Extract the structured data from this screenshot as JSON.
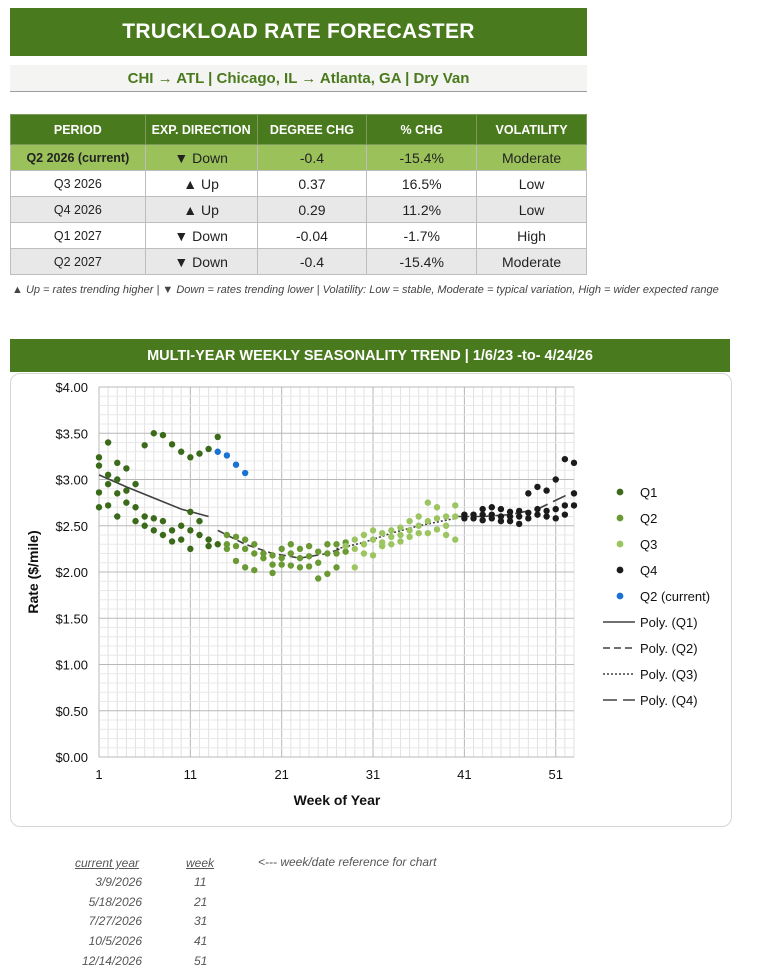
{
  "header": {
    "title": "TRUCKLOAD RATE FORECASTER"
  },
  "lane": {
    "text": "CHI → ATL  |  Chicago, IL → Atlanta, GA  |  Dry Van"
  },
  "forecast_table": {
    "columns": [
      "PERIOD",
      "EXP. DIRECTION",
      "DEGREE CHG",
      "% CHG",
      "VOLATILITY"
    ],
    "rows": [
      {
        "period": "Q2 2026 (current)",
        "direction": "▼ Down",
        "degree": "-0.4",
        "pct": "-15.4%",
        "volatility": "Moderate"
      },
      {
        "period": "Q3 2026",
        "direction": "▲ Up",
        "degree": "0.37",
        "pct": "16.5%",
        "volatility": "Low"
      },
      {
        "period": "Q4 2026",
        "direction": "▲ Up",
        "degree": "0.29",
        "pct": "11.2%",
        "volatility": "Low"
      },
      {
        "period": "Q1 2027",
        "direction": "▼ Down",
        "degree": "-0.04",
        "pct": "-1.7%",
        "volatility": "High"
      },
      {
        "period": "Q2 2027",
        "direction": "▼ Down",
        "degree": "-0.4",
        "pct": "-15.4%",
        "volatility": "Moderate"
      }
    ]
  },
  "legend_note": "▲ Up = rates trending higher  |  ▼ Down = rates trending lower  |  Volatility: Low = stable, Moderate = typical variation, High = wider expected range",
  "chart_header": "MULTI-YEAR WEEKLY SEASONALITY TREND  |  1/6/23 -to- 4/24/26",
  "chart_data": {
    "type": "scatter",
    "xlabel": "Week of Year",
    "ylabel": "Rate ($/mile)",
    "xlim": [
      1,
      52
    ],
    "ylim": [
      0,
      4
    ],
    "xticks": [
      1,
      11,
      21,
      31,
      41,
      51
    ],
    "xtick_labels": [
      "1",
      "11",
      "21",
      "31",
      "41",
      "51"
    ],
    "yticks": [
      0,
      0.5,
      1,
      1.5,
      2,
      2.5,
      3,
      3.5,
      4
    ],
    "ytick_labels": [
      "$0.00",
      "$0.50",
      "$1.00",
      "$1.50",
      "$2.00",
      "$2.50",
      "$3.00",
      "$3.50",
      "$4.00"
    ],
    "grid": true,
    "legend_position": "right",
    "series": [
      {
        "name": "Q1",
        "color": "#3b6b1a",
        "points": [
          [
            1,
            3.24
          ],
          [
            1,
            3.15
          ],
          [
            1,
            2.86
          ],
          [
            1,
            2.7
          ],
          [
            2,
            3.4
          ],
          [
            2,
            3.05
          ],
          [
            2,
            2.95
          ],
          [
            2,
            2.72
          ],
          [
            3,
            3.18
          ],
          [
            3,
            3.0
          ],
          [
            3,
            2.85
          ],
          [
            3,
            2.6
          ],
          [
            4,
            3.12
          ],
          [
            4,
            2.88
          ],
          [
            4,
            2.75
          ],
          [
            5,
            2.95
          ],
          [
            5,
            2.7
          ],
          [
            5,
            2.55
          ],
          [
            6,
            3.37
          ],
          [
            6,
            2.6
          ],
          [
            6,
            2.5
          ],
          [
            7,
            3.5
          ],
          [
            7,
            2.58
          ],
          [
            7,
            2.45
          ],
          [
            8,
            3.48
          ],
          [
            8,
            2.55
          ],
          [
            8,
            2.4
          ],
          [
            9,
            3.38
          ],
          [
            9,
            2.45
          ],
          [
            9,
            2.33
          ],
          [
            10,
            3.3
          ],
          [
            10,
            2.5
          ],
          [
            10,
            2.35
          ],
          [
            11,
            3.24
          ],
          [
            11,
            2.65
          ],
          [
            11,
            2.45
          ],
          [
            11,
            2.25
          ],
          [
            12,
            3.28
          ],
          [
            12,
            2.55
          ],
          [
            12,
            2.4
          ],
          [
            13,
            3.33
          ],
          [
            13,
            2.35
          ],
          [
            13,
            2.28
          ],
          [
            14,
            3.46
          ],
          [
            14,
            2.3
          ]
        ]
      },
      {
        "name": "Q2",
        "color": "#6b9a35",
        "points": [
          [
            15,
            2.4
          ],
          [
            15,
            2.3
          ],
          [
            15,
            2.25
          ],
          [
            16,
            2.38
          ],
          [
            16,
            2.28
          ],
          [
            16,
            2.12
          ],
          [
            17,
            2.35
          ],
          [
            17,
            2.25
          ],
          [
            17,
            2.05
          ],
          [
            18,
            2.3
          ],
          [
            18,
            2.2
          ],
          [
            18,
            2.02
          ],
          [
            19,
            2.2
          ],
          [
            19,
            2.15
          ],
          [
            20,
            2.18
          ],
          [
            20,
            2.08
          ],
          [
            20,
            1.99
          ],
          [
            21,
            2.25
          ],
          [
            21,
            2.15
          ],
          [
            21,
            2.08
          ],
          [
            22,
            2.3
          ],
          [
            22,
            2.2
          ],
          [
            22,
            2.07
          ],
          [
            23,
            2.25
          ],
          [
            23,
            2.15
          ],
          [
            23,
            2.05
          ],
          [
            24,
            2.28
          ],
          [
            24,
            2.17
          ],
          [
            24,
            2.06
          ],
          [
            25,
            2.22
          ],
          [
            25,
            2.1
          ],
          [
            25,
            1.93
          ],
          [
            26,
            2.3
          ],
          [
            26,
            2.2
          ],
          [
            26,
            1.98
          ],
          [
            27,
            2.3
          ],
          [
            27,
            2.2
          ],
          [
            27,
            2.05
          ],
          [
            28,
            2.32
          ],
          [
            28,
            2.22
          ]
        ]
      },
      {
        "name": "Q3",
        "color": "#9cc562",
        "points": [
          [
            28,
            2.28
          ],
          [
            29,
            2.35
          ],
          [
            29,
            2.25
          ],
          [
            29,
            2.05
          ],
          [
            30,
            2.4
          ],
          [
            30,
            2.3
          ],
          [
            30,
            2.2
          ],
          [
            31,
            2.45
          ],
          [
            31,
            2.35
          ],
          [
            31,
            2.18
          ],
          [
            32,
            2.42
          ],
          [
            32,
            2.32
          ],
          [
            32,
            2.28
          ],
          [
            33,
            2.45
          ],
          [
            33,
            2.38
          ],
          [
            33,
            2.3
          ],
          [
            34,
            2.48
          ],
          [
            34,
            2.4
          ],
          [
            34,
            2.33
          ],
          [
            35,
            2.55
          ],
          [
            35,
            2.45
          ],
          [
            35,
            2.38
          ],
          [
            36,
            2.6
          ],
          [
            36,
            2.5
          ],
          [
            36,
            2.42
          ],
          [
            37,
            2.75
          ],
          [
            37,
            2.55
          ],
          [
            37,
            2.42
          ],
          [
            38,
            2.7
          ],
          [
            38,
            2.58
          ],
          [
            38,
            2.46
          ],
          [
            39,
            2.6
          ],
          [
            39,
            2.5
          ],
          [
            39,
            2.4
          ],
          [
            40,
            2.72
          ],
          [
            40,
            2.6
          ],
          [
            40,
            2.35
          ]
        ]
      },
      {
        "name": "Q4",
        "color": "#1b1b1b",
        "points": [
          [
            41,
            2.62
          ],
          [
            41,
            2.58
          ],
          [
            42,
            2.62
          ],
          [
            42,
            2.58
          ],
          [
            43,
            2.68
          ],
          [
            43,
            2.62
          ],
          [
            43,
            2.56
          ],
          [
            44,
            2.7
          ],
          [
            44,
            2.62
          ],
          [
            44,
            2.58
          ],
          [
            45,
            2.68
          ],
          [
            45,
            2.6
          ],
          [
            45,
            2.55
          ],
          [
            46,
            2.65
          ],
          [
            46,
            2.6
          ],
          [
            46,
            2.55
          ],
          [
            47,
            2.66
          ],
          [
            47,
            2.6
          ],
          [
            47,
            2.52
          ],
          [
            48,
            2.85
          ],
          [
            48,
            2.64
          ],
          [
            48,
            2.58
          ],
          [
            49,
            2.92
          ],
          [
            49,
            2.68
          ],
          [
            49,
            2.62
          ],
          [
            50,
            2.88
          ],
          [
            50,
            2.66
          ],
          [
            50,
            2.6
          ],
          [
            51,
            3.0
          ],
          [
            51,
            2.68
          ],
          [
            51,
            2.58
          ],
          [
            52,
            3.22
          ],
          [
            52,
            2.72
          ],
          [
            52,
            2.62
          ],
          [
            53,
            3.18
          ],
          [
            53,
            2.85
          ],
          [
            53,
            2.72
          ]
        ]
      },
      {
        "name": "Q2 (current)",
        "color": "#1a73d2",
        "points": [
          [
            14,
            3.3
          ],
          [
            15,
            3.26
          ],
          [
            16,
            3.16
          ],
          [
            17,
            3.07
          ]
        ]
      },
      {
        "name": "Poly. (Q1)",
        "style": "solid",
        "color": "#404040",
        "points": [
          [
            1,
            3.05
          ],
          [
            4,
            2.92
          ],
          [
            7,
            2.8
          ],
          [
            10,
            2.68
          ],
          [
            13,
            2.6
          ]
        ]
      },
      {
        "name": "Poly. (Q2)",
        "style": "dash",
        "color": "#404040",
        "points": [
          [
            14,
            2.45
          ],
          [
            17,
            2.3
          ],
          [
            20,
            2.2
          ],
          [
            23,
            2.15
          ],
          [
            26,
            2.2
          ],
          [
            28,
            2.27
          ]
        ]
      },
      {
        "name": "Poly. (Q3)",
        "style": "dot",
        "color": "#404040",
        "points": [
          [
            27,
            2.25
          ],
          [
            30,
            2.32
          ],
          [
            33,
            2.42
          ],
          [
            36,
            2.5
          ],
          [
            40,
            2.58
          ]
        ]
      },
      {
        "name": "Poly. (Q4)",
        "style": "longdash",
        "color": "#404040",
        "points": [
          [
            40,
            2.6
          ],
          [
            43,
            2.6
          ],
          [
            46,
            2.62
          ],
          [
            49,
            2.68
          ],
          [
            53,
            2.87
          ]
        ]
      }
    ]
  },
  "reference": {
    "note": "<--- week/date reference for chart",
    "headers": {
      "date": "current year",
      "week": "week"
    },
    "rows": [
      {
        "date": "3/9/2026",
        "week": "11"
      },
      {
        "date": "5/18/2026",
        "week": "21"
      },
      {
        "date": "7/27/2026",
        "week": "31"
      },
      {
        "date": "10/5/2026",
        "week": "41"
      },
      {
        "date": "12/14/2026",
        "week": "51"
      }
    ]
  }
}
